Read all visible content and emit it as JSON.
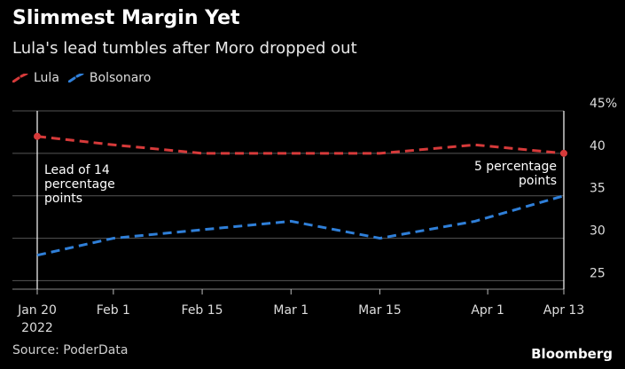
{
  "title": "Slimmest Margin Yet",
  "subtitle": "Lula's lead tumbles after Moro dropped out",
  "legend": [
    {
      "label": "Lula",
      "color": "#d63a3a"
    },
    {
      "label": "Bolsonaro",
      "color": "#2f7fd8"
    }
  ],
  "source": "Source: PoderData",
  "brand": "Bloomberg",
  "chart_data": {
    "type": "line",
    "x": [
      "2022-01-20",
      "2022-02-01",
      "2022-02-15",
      "2022-03-01",
      "2022-03-15",
      "2022-03-30",
      "2022-04-13"
    ],
    "x_tick_labels": [
      "Jan 20",
      "Feb 1",
      "Feb 15",
      "Mar 1",
      "Mar 15",
      "Apr 1",
      "Apr 13"
    ],
    "x_tick_dates": [
      "2022-01-20",
      "2022-02-01",
      "2022-02-15",
      "2022-03-01",
      "2022-03-15",
      "2022-04-01",
      "2022-04-13"
    ],
    "x_year_label": "2022",
    "series": [
      {
        "name": "Lula",
        "color": "#d63a3a",
        "values": [
          42,
          41,
          40,
          40,
          40,
          41,
          40
        ]
      },
      {
        "name": "Bolsonaro",
        "color": "#2f7fd8",
        "values": [
          28,
          30,
          31,
          32,
          30,
          32,
          35
        ]
      }
    ],
    "y_ticks": [
      25,
      30,
      35,
      40,
      45
    ],
    "y_top_label": "45%",
    "ylim": [
      24,
      45
    ],
    "grid": "horizontal",
    "annotations": [
      {
        "text_lines": [
          "Lead of 14",
          "percentage",
          "points"
        ],
        "at_date": "2022-01-20"
      },
      {
        "text_lines": [
          "5 percentage",
          "points"
        ],
        "at_date": "2022-04-13"
      }
    ]
  }
}
